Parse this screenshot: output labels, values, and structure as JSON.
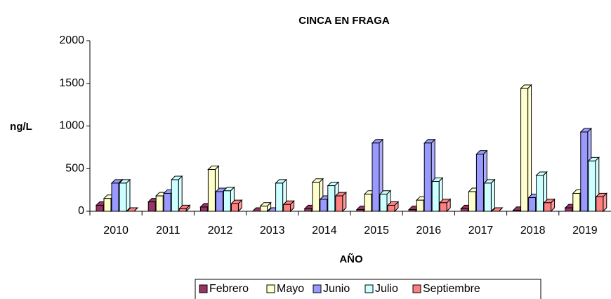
{
  "chart_data": {
    "type": "bar",
    "title": "CINCA EN FRAGA",
    "xlabel": "AÑO",
    "ylabel": "ng/L",
    "categories": [
      "2010",
      "2011",
      "2012",
      "2013",
      "2014",
      "2015",
      "2016",
      "2017",
      "2018",
      "2019"
    ],
    "series": [
      {
        "name": "Febrero",
        "color": "#993366",
        "values": [
          70,
          110,
          50,
          0,
          30,
          20,
          20,
          30,
          10,
          40
        ]
      },
      {
        "name": "Mayo",
        "color": "#ffffcc",
        "values": [
          150,
          180,
          490,
          60,
          340,
          200,
          130,
          230,
          1440,
          210
        ]
      },
      {
        "name": "Junio",
        "color": "#9999ff",
        "values": [
          330,
          210,
          230,
          0,
          140,
          800,
          800,
          670,
          160,
          930
        ]
      },
      {
        "name": "Julio",
        "color": "#ccffff",
        "values": [
          330,
          370,
          240,
          330,
          300,
          200,
          350,
          330,
          420,
          590
        ]
      },
      {
        "name": "Septiembre",
        "color": "#ff8080",
        "values": [
          0,
          30,
          90,
          80,
          180,
          70,
          100,
          0,
          100,
          170
        ]
      }
    ],
    "ylim": [
      0,
      2000
    ],
    "yticks": [
      0,
      500,
      1000,
      1500,
      2000
    ]
  }
}
